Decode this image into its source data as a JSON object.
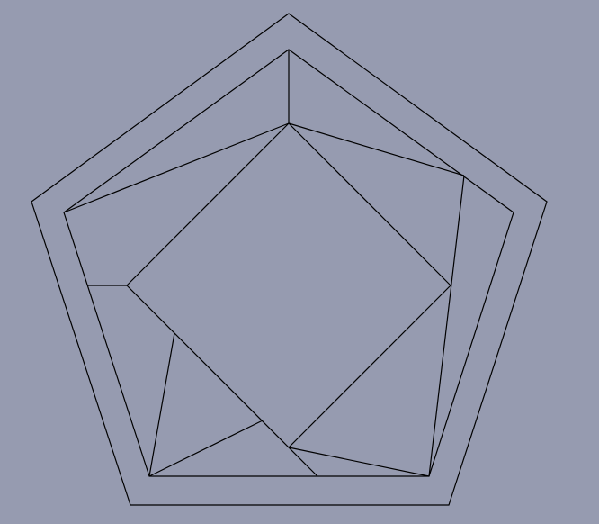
{
  "diagram": {
    "description": "",
    "colors": {
      "background": "#969bb0",
      "stroke": "#000000"
    }
  }
}
